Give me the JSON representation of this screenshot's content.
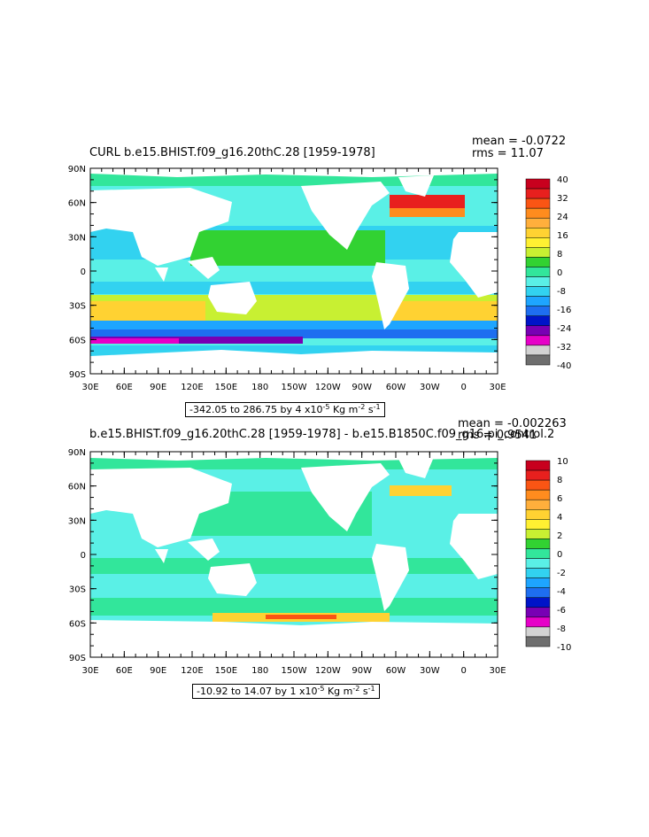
{
  "chart_data": [
    {
      "type": "heatmap",
      "title": "CURL b.e15.BHIST.f09_g16.20thC.28 [1959-1978]",
      "stats": {
        "mean": "mean = -0.0722",
        "rms": "rms = 11.07"
      },
      "range_text": {
        "prefix": "-342.05 to 286.75 by 4 x10",
        "exp": "-5",
        "unit": " Kg m",
        "unit_exp": "-2",
        "s": " s",
        "s_exp": "-1"
      },
      "lat_ticks": [
        "90N",
        "60N",
        "30N",
        "0",
        "30S",
        "60S",
        "90S"
      ],
      "lon_ticks": [
        "30E",
        "60E",
        "90E",
        "120E",
        "150E",
        "180",
        "150W",
        "120W",
        "90W",
        "60W",
        "30W",
        "0",
        "30E"
      ],
      "colorbar": {
        "labels": [
          "40",
          "32",
          "24",
          "16",
          "8",
          "0",
          "-8",
          "-16",
          "-24",
          "-32",
          "-40"
        ],
        "colors": [
          "#c8001e",
          "#e8201e",
          "#fa5514",
          "#ff8c1e",
          "#ffaf3c",
          "#ffd232",
          "#fff032",
          "#c8f032",
          "#32d232",
          "#32e69b",
          "#5af0e6",
          "#32d2f0",
          "#1ea5ff",
          "#1e6ef0",
          "#0014c8",
          "#7800b4",
          "#e600c8",
          "#d2d2d2",
          "#6e6e6e"
        ]
      }
    },
    {
      "type": "heatmap",
      "title": "b.e15.BHIST.f09_g16.20thC.28 [1959-1978] - b.e15.B1850C.f09_g16.pi_control.2",
      "stats": {
        "mean": "mean = -0.002263",
        "rms": "rms = 0.9541"
      },
      "range_text": {
        "prefix": "-10.92 to 14.07 by 1 x10",
        "exp": "-5",
        "unit": " Kg m",
        "unit_exp": "-2",
        "s": " s",
        "s_exp": "-1"
      },
      "lat_ticks": [
        "90N",
        "60N",
        "30N",
        "0",
        "30S",
        "60S",
        "90S"
      ],
      "lon_ticks": [
        "30E",
        "60E",
        "90E",
        "120E",
        "150E",
        "180",
        "150W",
        "120W",
        "90W",
        "60W",
        "30W",
        "0",
        "30E"
      ],
      "colorbar": {
        "labels": [
          "10",
          "8",
          "6",
          "4",
          "2",
          "0",
          "-2",
          "-4",
          "-6",
          "-8",
          "-10"
        ],
        "colors": [
          "#c8001e",
          "#e8201e",
          "#fa5514",
          "#ff8c1e",
          "#ffaf3c",
          "#ffd232",
          "#fff032",
          "#c8f032",
          "#32d232",
          "#32e69b",
          "#5af0e6",
          "#32d2f0",
          "#1ea5ff",
          "#1e6ef0",
          "#0014c8",
          "#7800b4",
          "#e600c8",
          "#d2d2d2",
          "#6e6e6e"
        ]
      }
    }
  ]
}
